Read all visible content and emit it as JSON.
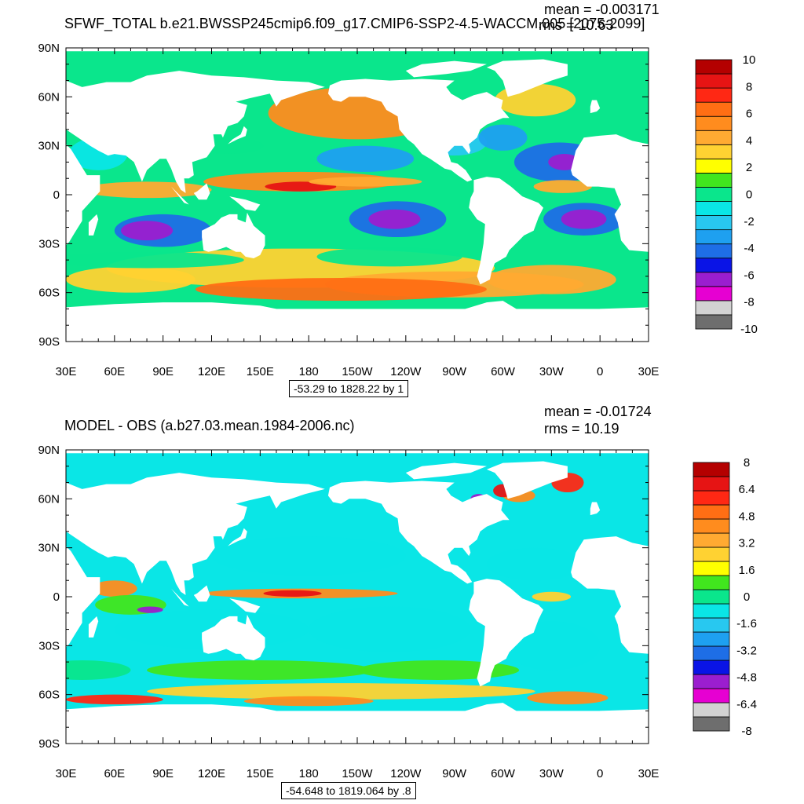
{
  "panels": [
    {
      "title": "SFWF_TOTAL b.e21.BWSSP245cmip6.f09_g17.CMIP6-SSP2-4.5-WACCM.005 [2075-2099]",
      "mean_text": "mean = -0.003171",
      "rms_text": "rms = 10.63",
      "range_text": "-53.29 to 1828.22 by 1",
      "colorbar_labels": [
        "10",
        "8",
        "6",
        "4",
        "2",
        "0",
        "-2",
        "-4",
        "-6",
        "-8",
        "-10"
      ]
    },
    {
      "title": "MODEL - OBS (a.b27.03.mean.1984-2006.nc)",
      "mean_text": "mean = -0.01724",
      "rms_text": "rms = 10.19",
      "range_text": "-54.648 to 1819.064 by .8",
      "colorbar_labels": [
        "8",
        "6.4",
        "4.8",
        "3.2",
        "1.6",
        "0",
        "-1.6",
        "-3.2",
        "-4.8",
        "-6.4",
        "-8"
      ]
    }
  ],
  "axes": {
    "lat_labels": [
      "90N",
      "60N",
      "30N",
      "0",
      "30S",
      "60S",
      "90S"
    ],
    "lon_labels": [
      "30E",
      "60E",
      "90E",
      "120E",
      "150E",
      "180",
      "150W",
      "120W",
      "90W",
      "60W",
      "30W",
      "0",
      "30E"
    ]
  },
  "colors": {
    "palette": [
      "#6e6e6e",
      "#d2d2d2",
      "#e600d2",
      "#9b1ecf",
      "#0a14e6",
      "#1e6ee6",
      "#1ea0f0",
      "#28c8f0",
      "#0ae6e6",
      "#0ae68c",
      "#41e61e",
      "#ffff00",
      "#ffd232",
      "#ffaa32",
      "#ff8c1e",
      "#ff6e14",
      "#ff2814",
      "#e61414",
      "#b40000"
    ],
    "land": "#ffffff",
    "coast": "#000000"
  }
}
